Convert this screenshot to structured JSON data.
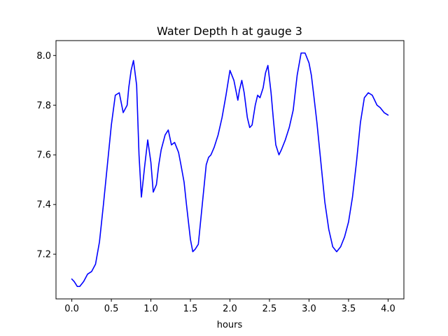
{
  "chart_data": {
    "type": "line",
    "title": "Water Depth h at gauge 3",
    "xlabel": "hours",
    "ylabel": "",
    "xlim": [
      -0.2,
      4.2
    ],
    "ylim": [
      7.02,
      8.06
    ],
    "xticks": [
      0.0,
      0.5,
      1.0,
      1.5,
      2.0,
      2.5,
      3.0,
      3.5,
      4.0
    ],
    "xtick_labels": [
      "0.0",
      "0.5",
      "1.0",
      "1.5",
      "2.0",
      "2.5",
      "3.0",
      "3.5",
      "4.0"
    ],
    "yticks": [
      7.2,
      7.4,
      7.6,
      7.8,
      8.0
    ],
    "ytick_labels": [
      "7.2",
      "7.4",
      "7.6",
      "7.8",
      "8.0"
    ],
    "grid": false,
    "legend": "none",
    "series": [
      {
        "color": "#0000ff",
        "x": [
          0.0,
          0.03,
          0.07,
          0.1,
          0.15,
          0.2,
          0.25,
          0.3,
          0.35,
          0.4,
          0.45,
          0.5,
          0.55,
          0.6,
          0.65,
          0.7,
          0.72,
          0.75,
          0.78,
          0.82,
          0.85,
          0.88,
          0.92,
          0.96,
          1.0,
          1.03,
          1.07,
          1.1,
          1.13,
          1.18,
          1.22,
          1.26,
          1.3,
          1.35,
          1.38,
          1.42,
          1.45,
          1.5,
          1.53,
          1.56,
          1.6,
          1.65,
          1.7,
          1.73,
          1.76,
          1.8,
          1.85,
          1.9,
          1.95,
          2.0,
          2.05,
          2.1,
          2.12,
          2.15,
          2.18,
          2.22,
          2.25,
          2.28,
          2.32,
          2.35,
          2.38,
          2.42,
          2.45,
          2.48,
          2.52,
          2.55,
          2.58,
          2.62,
          2.65,
          2.7,
          2.75,
          2.8,
          2.85,
          2.9,
          2.95,
          3.0,
          3.03,
          3.06,
          3.1,
          3.15,
          3.2,
          3.25,
          3.3,
          3.35,
          3.4,
          3.45,
          3.5,
          3.55,
          3.6,
          3.65,
          3.7,
          3.75,
          3.8,
          3.83,
          3.86,
          3.9,
          3.95,
          4.0
        ],
        "y": [
          7.1,
          7.09,
          7.07,
          7.07,
          7.09,
          7.12,
          7.13,
          7.16,
          7.25,
          7.4,
          7.56,
          7.72,
          7.84,
          7.85,
          7.77,
          7.8,
          7.87,
          7.94,
          7.98,
          7.88,
          7.6,
          7.43,
          7.55,
          7.66,
          7.57,
          7.45,
          7.48,
          7.56,
          7.62,
          7.68,
          7.7,
          7.64,
          7.65,
          7.61,
          7.56,
          7.49,
          7.4,
          7.26,
          7.21,
          7.22,
          7.24,
          7.4,
          7.56,
          7.59,
          7.6,
          7.63,
          7.68,
          7.75,
          7.84,
          7.94,
          7.9,
          7.82,
          7.86,
          7.9,
          7.85,
          7.75,
          7.71,
          7.72,
          7.8,
          7.84,
          7.83,
          7.87,
          7.93,
          7.96,
          7.85,
          7.74,
          7.64,
          7.6,
          7.62,
          7.66,
          7.71,
          7.78,
          7.92,
          8.01,
          8.01,
          7.97,
          7.92,
          7.84,
          7.73,
          7.57,
          7.41,
          7.3,
          7.23,
          7.21,
          7.23,
          7.27,
          7.33,
          7.43,
          7.57,
          7.73,
          7.83,
          7.85,
          7.84,
          7.82,
          7.8,
          7.79,
          7.77,
          7.76
        ]
      }
    ]
  }
}
